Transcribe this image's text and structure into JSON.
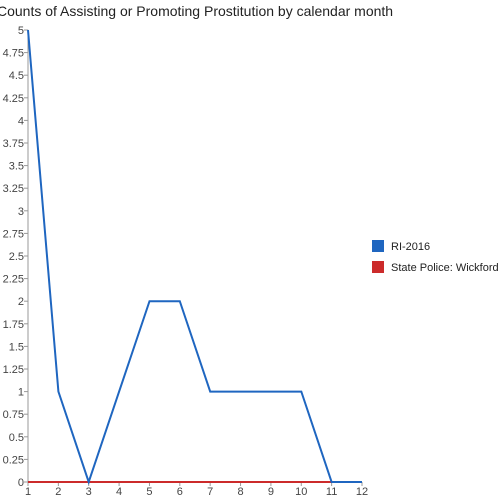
{
  "chart_data": {
    "type": "line",
    "title": "Counts of Assisting or Promoting Prostitution by calendar month",
    "xlabel": "",
    "ylabel": "",
    "x": [
      1,
      2,
      3,
      4,
      5,
      6,
      7,
      8,
      9,
      10,
      11,
      12
    ],
    "xlim": [
      1,
      12
    ],
    "ylim": [
      0,
      5
    ],
    "y_ticks": [
      "0",
      "0.25",
      "0.5",
      "0.75",
      "1",
      "1.25",
      "1.5",
      "1.75",
      "2",
      "2.25",
      "2.5",
      "2.75",
      "3",
      "3.25",
      "3.5",
      "3.75",
      "4",
      "4.25",
      "4.5",
      "4.75",
      "5"
    ],
    "x_ticks": [
      "1",
      "2",
      "3",
      "4",
      "5",
      "6",
      "7",
      "8",
      "9",
      "10",
      "11",
      "12"
    ],
    "grid": false,
    "legend_position": "right",
    "series": [
      {
        "name": "RI-2016",
        "color": "#1f66c0",
        "values": [
          5,
          1,
          0,
          1,
          2,
          2,
          1,
          1,
          1,
          1,
          0,
          0
        ]
      },
      {
        "name": "State Police: Wickford",
        "color": "#cc2b2b",
        "values": [
          0,
          0,
          0,
          0,
          0,
          0,
          0,
          0,
          0,
          0,
          0,
          0
        ]
      }
    ]
  }
}
